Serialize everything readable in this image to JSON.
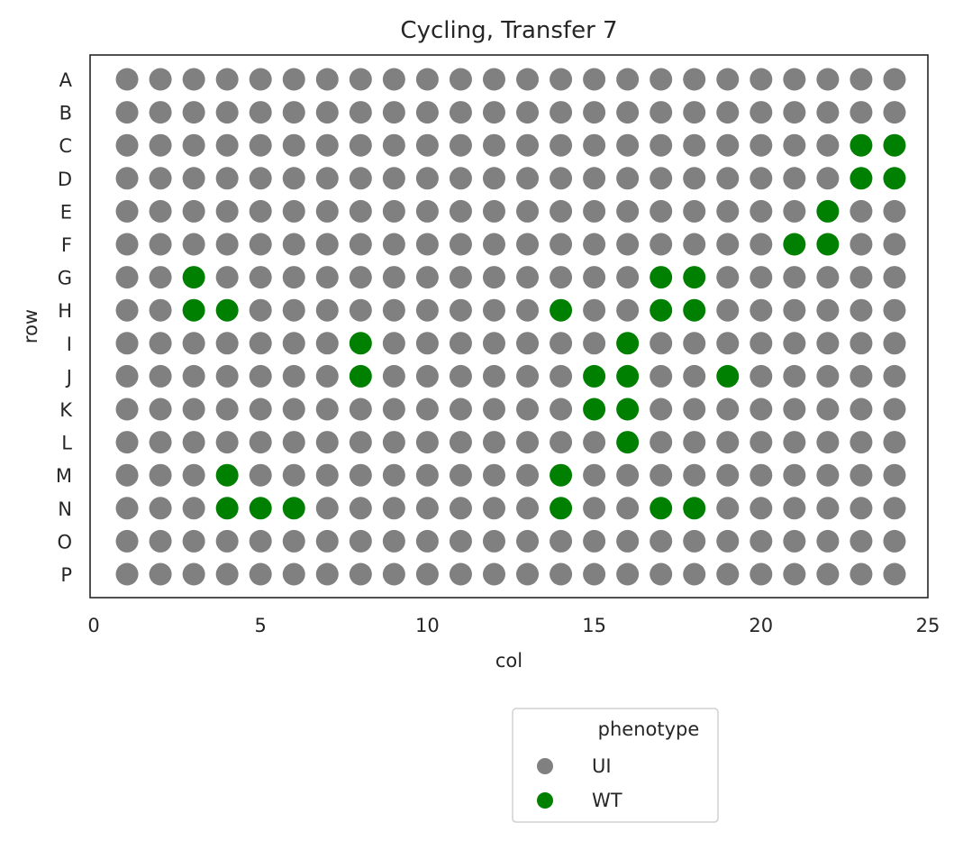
{
  "chart_data": {
    "type": "scatter",
    "title": "Cycling, Transfer 7",
    "xlabel": "col",
    "ylabel": "row",
    "xlim": [
      0,
      25
    ],
    "xticks": [
      0,
      5,
      10,
      15,
      20,
      25
    ],
    "rows": [
      "A",
      "B",
      "C",
      "D",
      "E",
      "F",
      "G",
      "H",
      "I",
      "J",
      "K",
      "L",
      "M",
      "N",
      "O",
      "P"
    ],
    "cols": [
      1,
      2,
      3,
      4,
      5,
      6,
      7,
      8,
      9,
      10,
      11,
      12,
      13,
      14,
      15,
      16,
      17,
      18,
      19,
      20,
      21,
      22,
      23,
      24
    ],
    "grid": false,
    "legend": {
      "title": "phenotype",
      "placement": "below-right",
      "entries": [
        {
          "label": "UI",
          "color": "#808080"
        },
        {
          "label": "WT",
          "color": "#008000"
        }
      ]
    },
    "series": [
      {
        "name": "UI",
        "color": "#808080",
        "default": true
      },
      {
        "name": "WT",
        "color": "#008000",
        "points": [
          {
            "row": "C",
            "col": 23
          },
          {
            "row": "C",
            "col": 24
          },
          {
            "row": "D",
            "col": 23
          },
          {
            "row": "D",
            "col": 24
          },
          {
            "row": "E",
            "col": 22
          },
          {
            "row": "F",
            "col": 21
          },
          {
            "row": "F",
            "col": 22
          },
          {
            "row": "G",
            "col": 3
          },
          {
            "row": "G",
            "col": 17
          },
          {
            "row": "G",
            "col": 18
          },
          {
            "row": "H",
            "col": 3
          },
          {
            "row": "H",
            "col": 4
          },
          {
            "row": "H",
            "col": 14
          },
          {
            "row": "H",
            "col": 17
          },
          {
            "row": "H",
            "col": 18
          },
          {
            "row": "I",
            "col": 8
          },
          {
            "row": "I",
            "col": 16
          },
          {
            "row": "J",
            "col": 8
          },
          {
            "row": "J",
            "col": 15
          },
          {
            "row": "J",
            "col": 16
          },
          {
            "row": "J",
            "col": 19
          },
          {
            "row": "K",
            "col": 15
          },
          {
            "row": "K",
            "col": 16
          },
          {
            "row": "L",
            "col": 16
          },
          {
            "row": "M",
            "col": 4
          },
          {
            "row": "M",
            "col": 14
          },
          {
            "row": "N",
            "col": 4
          },
          {
            "row": "N",
            "col": 5
          },
          {
            "row": "N",
            "col": 6
          },
          {
            "row": "N",
            "col": 14
          },
          {
            "row": "N",
            "col": 17
          },
          {
            "row": "N",
            "col": 18
          }
        ]
      }
    ]
  }
}
